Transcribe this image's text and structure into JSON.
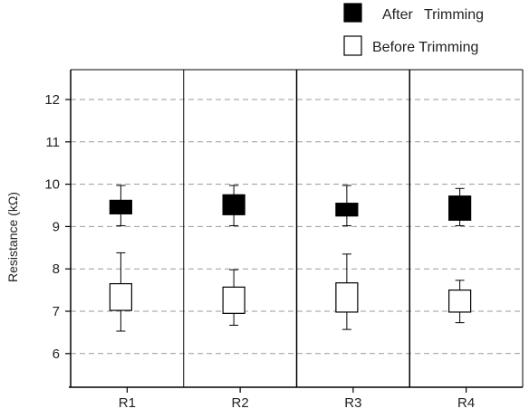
{
  "chart_data": {
    "type": "box",
    "title": "",
    "xlabel": "",
    "ylabel": "Resistance (kΩ)",
    "ylim": [
      5.3,
      12.8
    ],
    "yticks": [
      6,
      7,
      8,
      9,
      10,
      11,
      12
    ],
    "grid": "horizontal dashed",
    "legend_position": "top-right",
    "categories": [
      "R1",
      "R2",
      "R3",
      "R4"
    ],
    "series": [
      {
        "name": "After Trimming",
        "fill": "#000000",
        "boxes": [
          {
            "min": 9.02,
            "q1": 9.3,
            "q3": 9.62,
            "max": 9.97
          },
          {
            "min": 9.02,
            "q1": 9.28,
            "q3": 9.75,
            "max": 9.97
          },
          {
            "min": 9.02,
            "q1": 9.25,
            "q3": 9.55,
            "max": 9.97
          },
          {
            "min": 9.02,
            "q1": 9.15,
            "q3": 9.72,
            "max": 9.9
          }
        ]
      },
      {
        "name": "Before Trimming",
        "fill": "#ffffff",
        "boxes": [
          {
            "min": 6.53,
            "q1": 7.02,
            "q3": 7.65,
            "max": 8.38
          },
          {
            "min": 6.67,
            "q1": 6.95,
            "q3": 7.57,
            "max": 7.98
          },
          {
            "min": 6.57,
            "q1": 6.98,
            "q3": 7.67,
            "max": 8.35
          },
          {
            "min": 6.73,
            "q1": 6.98,
            "q3": 7.5,
            "max": 7.73
          }
        ]
      }
    ]
  }
}
